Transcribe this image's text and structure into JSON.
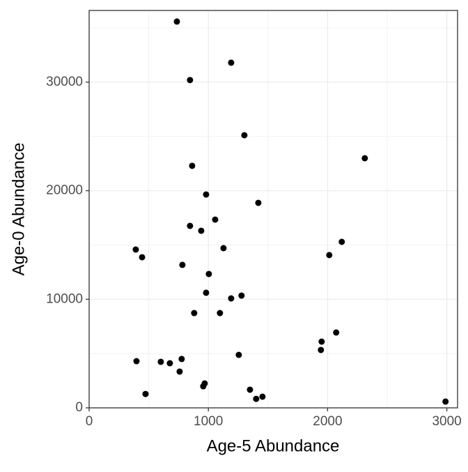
{
  "chart_data": {
    "type": "scatter",
    "x_label": "Age-5 Abundance",
    "y_label": "Age-0 Abundance",
    "x": [
      736,
      1191,
      846,
      1302,
      2312,
      864,
      981,
      1419,
      1057,
      846,
      940,
      2119,
      1127,
      391,
      444,
      2014,
      782,
      1004,
      981,
      1278,
      1191,
      881,
      1097,
      2072,
      1950,
      1944,
      1255,
      776,
      397,
      601,
      677,
      759,
      969,
      957,
      1349,
      1454,
      1401,
      473,
      2989
    ],
    "values": [
      35580,
      31790,
      30190,
      25110,
      22990,
      22290,
      19650,
      18880,
      17340,
      16760,
      16310,
      15290,
      14710,
      14580,
      13870,
      14070,
      13170,
      12330,
      10600,
      10340,
      10080,
      8730,
      8730,
      6940,
      6100,
      5330,
      4880,
      4500,
      4300,
      4240,
      4110,
      3340,
      2250,
      1990,
      1670,
      1030,
      830,
      1280,
      580
    ],
    "color": "#000000",
    "xlim": [
      0,
      3090
    ],
    "xticks": [
      0,
      1000,
      2000,
      3000
    ],
    "ylim": [
      0,
      36600
    ],
    "yticks": [
      0,
      10000,
      20000,
      30000
    ],
    "grid": true
  }
}
